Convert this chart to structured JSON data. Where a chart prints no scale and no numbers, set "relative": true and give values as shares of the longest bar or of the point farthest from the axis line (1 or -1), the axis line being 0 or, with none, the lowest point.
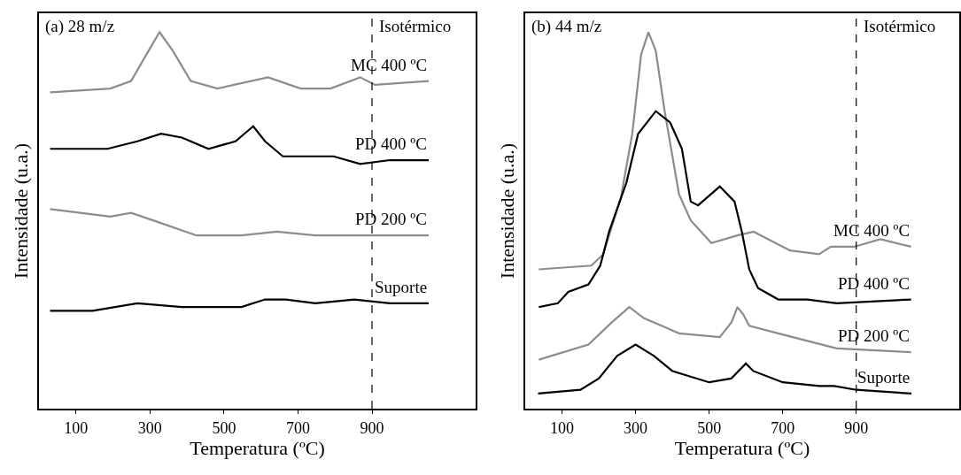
{
  "chart_data": [
    {
      "type": "line",
      "title": "(a) 28 m/z",
      "xlabel": "Temperatura (ºC)",
      "ylabel": "Intensidade (u.a.)",
      "relative": true,
      "xlim": [
        0,
        1180
      ],
      "xticks": [
        100,
        300,
        500,
        700,
        900
      ],
      "grid": false,
      "legend": false,
      "marker": "none",
      "line_style": "solid",
      "ref_lines": [
        {
          "axis": "x",
          "value": 900,
          "label": "Isotérmico",
          "color": "#000000",
          "line_style": "dashed"
        }
      ],
      "series": [
        {
          "name": "MC 400 ºC",
          "color": "#8c8c8c",
          "x": [
            30,
            193,
            249,
            290,
            326,
            362,
            410,
            482,
            619,
            707,
            788,
            868,
            908,
            1053
          ],
          "values": [
            0.84,
            0.85,
            0.87,
            0.94,
            1,
            0.95,
            0.87,
            0.85,
            0.88,
            0.85,
            0.85,
            0.88,
            0.86,
            0.87
          ]
        },
        {
          "name": "PD 400 ºC",
          "color": "#000000",
          "x": [
            30,
            185,
            266,
            330,
            386,
            458,
            531,
            579,
            611,
            659,
            747,
            796,
            868,
            948,
            1053
          ],
          "values": [
            0.69,
            0.69,
            0.71,
            0.73,
            0.72,
            0.69,
            0.71,
            0.75,
            0.71,
            0.67,
            0.67,
            0.67,
            0.65,
            0.66,
            0.66
          ]
        },
        {
          "name": "PD 200 ºC",
          "color": "#8c8c8c",
          "x": [
            30,
            193,
            249,
            338,
            426,
            547,
            643,
            747,
            900,
            1053
          ],
          "values": [
            0.53,
            0.51,
            0.52,
            0.49,
            0.46,
            0.46,
            0.47,
            0.46,
            0.46,
            0.46
          ]
        },
        {
          "name": "Suporte",
          "color": "#000000",
          "x": [
            30,
            145,
            266,
            386,
            547,
            611,
            667,
            747,
            852,
            948,
            1053
          ],
          "values": [
            0.26,
            0.26,
            0.28,
            0.27,
            0.27,
            0.29,
            0.29,
            0.28,
            0.29,
            0.28,
            0.28
          ]
        }
      ]
    },
    {
      "type": "line",
      "title": "(b) 44 m/z",
      "xlabel": "Temperatura (ºC)",
      "ylabel": "Intensidade (u.a.)",
      "relative": true,
      "xlim": [
        0,
        1180
      ],
      "xticks": [
        100,
        300,
        500,
        700,
        900
      ],
      "grid": false,
      "legend": false,
      "marker": "none",
      "line_style": "solid",
      "ref_lines": [
        {
          "axis": "x",
          "value": 900,
          "label": "Isotérmico",
          "color": "#000000",
          "line_style": "dashed"
        }
      ],
      "series": [
        {
          "name": "MC 400 ºC",
          "color": "#8c8c8c",
          "x": [
            37,
            180,
            212,
            260,
            291,
            315,
            335,
            355,
            379,
            418,
            450,
            506,
            577,
            621,
            720,
            799,
            831,
            894,
            966,
            1049
          ],
          "values": [
            0.37,
            0.38,
            0.41,
            0.56,
            0.73,
            0.94,
            1,
            0.95,
            0.79,
            0.57,
            0.5,
            0.44,
            0.46,
            0.47,
            0.42,
            0.41,
            0.43,
            0.43,
            0.45,
            0.43
          ]
        },
        {
          "name": "PD 400 ºC",
          "color": "#000000",
          "x": [
            37,
            89,
            117,
            172,
            204,
            228,
            275,
            307,
            355,
            394,
            426,
            450,
            470,
            529,
            569,
            589,
            609,
            633,
            688,
            767,
            847,
            1049
          ],
          "values": [
            0.27,
            0.28,
            0.31,
            0.33,
            0.38,
            0.47,
            0.6,
            0.73,
            0.79,
            0.76,
            0.69,
            0.55,
            0.54,
            0.59,
            0.55,
            0.47,
            0.37,
            0.32,
            0.29,
            0.29,
            0.28,
            0.29
          ]
        },
        {
          "name": "PD 200 ºC",
          "color": "#8c8c8c",
          "x": [
            37,
            172,
            236,
            283,
            323,
            371,
            418,
            529,
            561,
            577,
            593,
            609,
            688,
            767,
            847,
            1049
          ],
          "values": [
            0.13,
            0.17,
            0.23,
            0.27,
            0.24,
            0.22,
            0.2,
            0.19,
            0.23,
            0.27,
            0.25,
            0.22,
            0.2,
            0.18,
            0.16,
            0.15
          ]
        },
        {
          "name": "Suporte",
          "color": "#000000",
          "x": [
            35,
            150,
            200,
            250,
            300,
            350,
            400,
            500,
            560,
            600,
            620,
            700,
            800,
            840,
            900,
            1050
          ],
          "values": [
            0.04,
            0.05,
            0.08,
            0.14,
            0.17,
            0.14,
            0.1,
            0.07,
            0.08,
            0.12,
            0.1,
            0.07,
            0.06,
            0.06,
            0.05,
            0.04
          ]
        }
      ]
    }
  ]
}
